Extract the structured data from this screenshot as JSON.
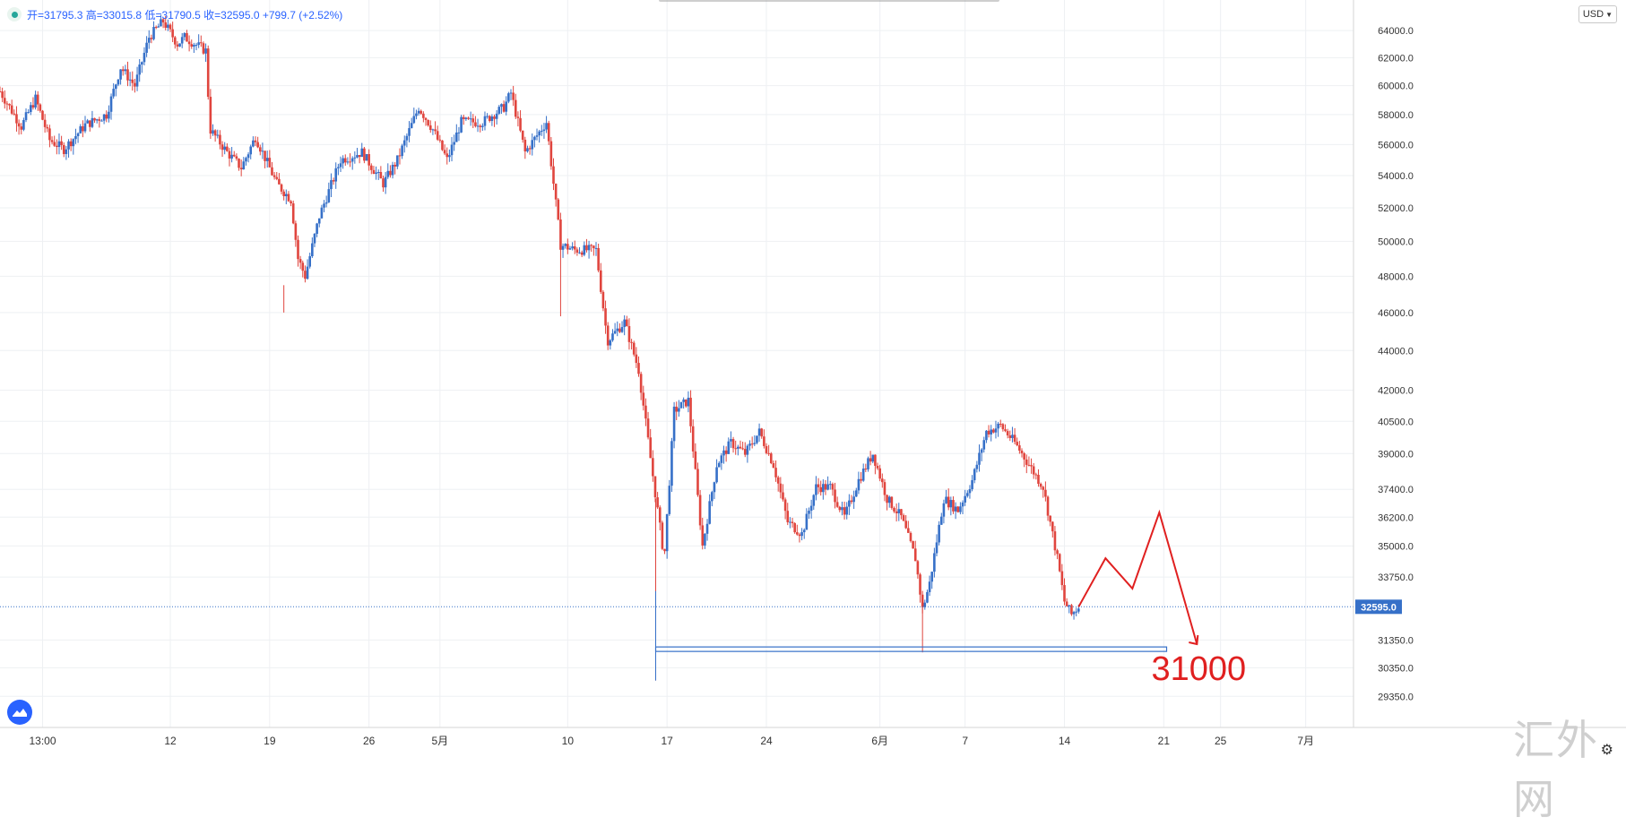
{
  "ohlc": {
    "text": "开=31795.3 高=33015.8 低=31790.5 收=32595.0 +799.7 (+2.52%)"
  },
  "currency": "USD",
  "watermark": "汇外网",
  "colors": {
    "up": "#3670c8",
    "down": "#e0453e",
    "grid": "#eef0f3",
    "axis_text": "#333333",
    "last_price_bg": "#3670c8",
    "annotation": "#e02020",
    "support": "#3670c8"
  },
  "chart_data": {
    "type": "candlestick",
    "title": "",
    "xlabel": "",
    "ylabel": "",
    "scale": "log",
    "ylim": [
      28900,
      65500
    ],
    "grid": true,
    "y_ticks": [
      29350,
      30350,
      31350,
      33750,
      35000,
      36200,
      37400,
      39000,
      40500,
      42000,
      44000,
      46000,
      48000,
      50000,
      52000,
      54000,
      56000,
      58000,
      60000,
      62000,
      64000
    ],
    "y_tick_labels": [
      "29350.0",
      "30350.0",
      "31350.0",
      "33750.0",
      "35000.0",
      "36200.0",
      "37400.0",
      "39000.0",
      "40500.0",
      "42000.0",
      "44000.0",
      "46000.0",
      "48000.0",
      "50000.0",
      "52000.0",
      "54000.0",
      "56000.0",
      "58000.0",
      "60000.0",
      "62000.0",
      "64000.0"
    ],
    "x_ticks": [
      {
        "label": "13:00",
        "day": 3
      },
      {
        "label": "12",
        "day": 12
      },
      {
        "label": "19",
        "day": 19
      },
      {
        "label": "26",
        "day": 26
      },
      {
        "label": "5月",
        "day": 31
      },
      {
        "label": "10",
        "day": 40
      },
      {
        "label": "17",
        "day": 47
      },
      {
        "label": "24",
        "day": 54
      },
      {
        "label": "6月",
        "day": 62
      },
      {
        "label": "7",
        "day": 68
      },
      {
        "label": "14",
        "day": 75
      },
      {
        "label": "21",
        "day": 82
      },
      {
        "label": "25",
        "day": 86
      },
      {
        "label": "7月",
        "day": 92
      }
    ],
    "x_range_days": [
      0,
      96
    ],
    "price_path": [
      [
        0,
        59600
      ],
      [
        1.5,
        57200
      ],
      [
        2.5,
        59100
      ],
      [
        3.5,
        56300
      ],
      [
        4.5,
        55700
      ],
      [
        6,
        57300
      ],
      [
        7.5,
        58000
      ],
      [
        8.5,
        61300
      ],
      [
        9.5,
        60000
      ],
      [
        10.5,
        63500
      ],
      [
        11.5,
        64700
      ],
      [
        12.5,
        63000
      ],
      [
        13,
        63500
      ],
      [
        14.5,
        62500
      ],
      [
        14.8,
        57000
      ],
      [
        16,
        55500
      ],
      [
        17,
        54500
      ],
      [
        18,
        56500
      ],
      [
        19.5,
        53500
      ],
      [
        20.5,
        52500
      ],
      [
        21,
        49000
      ],
      [
        21.5,
        48000
      ],
      [
        22.5,
        51500
      ],
      [
        24,
        55000
      ],
      [
        25.5,
        55500
      ],
      [
        27,
        53500
      ],
      [
        28,
        55000
      ],
      [
        29.5,
        58500
      ],
      [
        30.5,
        57000
      ],
      [
        31.5,
        55000
      ],
      [
        32.5,
        57500
      ],
      [
        34,
        57500
      ],
      [
        35.5,
        58500
      ],
      [
        36,
        59500
      ],
      [
        37,
        55500
      ],
      [
        38.5,
        57500
      ],
      [
        39.5,
        49800
      ],
      [
        40.5,
        49500
      ],
      [
        42,
        49500
      ],
      [
        42.8,
        44500
      ],
      [
        44,
        45500
      ],
      [
        45,
        43000
      ],
      [
        46,
        38000
      ],
      [
        46.8,
        34500
      ],
      [
        47.5,
        41000
      ],
      [
        48.5,
        41500
      ],
      [
        49.5,
        35000
      ],
      [
        50.5,
        38500
      ],
      [
        51.5,
        39500
      ],
      [
        52.5,
        39000
      ],
      [
        53.5,
        40000
      ],
      [
        54.5,
        38500
      ],
      [
        55.5,
        36000
      ],
      [
        56.5,
        35500
      ],
      [
        57.5,
        37500
      ],
      [
        58.5,
        37500
      ],
      [
        59.5,
        36200
      ],
      [
        60.5,
        37800
      ],
      [
        61.5,
        39000
      ],
      [
        62.5,
        37000
      ],
      [
        63.5,
        36200
      ],
      [
        64.5,
        34500
      ],
      [
        65,
        32500
      ],
      [
        65.5,
        33500
      ],
      [
        66.5,
        37000
      ],
      [
        67.5,
        36500
      ],
      [
        68.5,
        37800
      ],
      [
        69.5,
        40000
      ],
      [
        70.5,
        40300
      ],
      [
        71.5,
        39500
      ],
      [
        72.5,
        38500
      ],
      [
        73.5,
        37500
      ],
      [
        74.5,
        34500
      ],
      [
        75,
        32800
      ],
      [
        75.5,
        32300
      ],
      [
        76,
        32600
      ]
    ],
    "last_price": 32595.0,
    "last_price_label": "32595.0",
    "support_level": 31000,
    "forecast_path": [
      [
        32595,
        0
      ],
      [
        34500,
        1
      ],
      [
        33300,
        2
      ],
      [
        36400,
        3
      ],
      [
        31200,
        4.4
      ]
    ],
    "annotation": "31000"
  }
}
